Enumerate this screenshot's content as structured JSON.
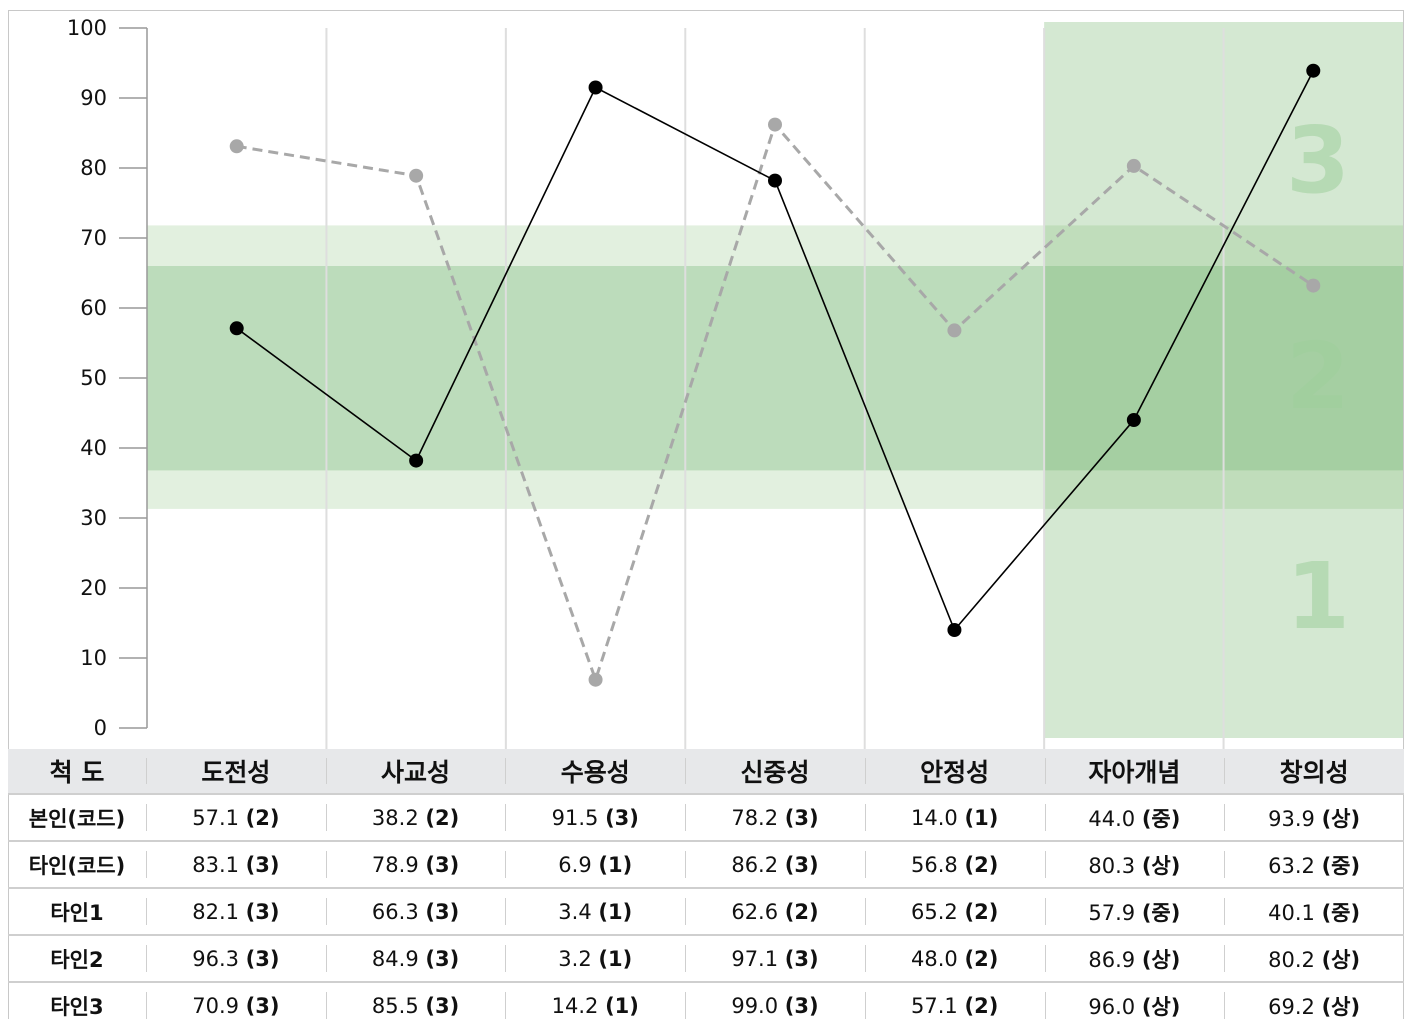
{
  "chart_data": {
    "type": "line",
    "title": "",
    "xlabel": "",
    "ylabel": "",
    "ylim": [
      0,
      100
    ],
    "yticks": [
      0,
      10,
      20,
      30,
      40,
      50,
      60,
      70,
      80,
      90,
      100
    ],
    "categories": [
      "도전성",
      "사교성",
      "수용성",
      "신중성",
      "안정성",
      "자아개념",
      "창의성"
    ],
    "bands": {
      "outer": [
        31.3,
        71.8
      ],
      "inner": [
        36.8,
        66.0
      ],
      "highlight_categories": [
        "자아개념",
        "창의성"
      ],
      "level_labels": [
        "1",
        "2",
        "3"
      ]
    },
    "series": [
      {
        "values": [
          57.1,
          38.2,
          91.5,
          78.2,
          14.0,
          44.0,
          93.9
        ],
        "color": "#000000",
        "style": "solid"
      },
      {
        "values": [
          83.1,
          78.9,
          6.9,
          86.2,
          56.8,
          80.3,
          63.2
        ],
        "color": "#a8a8a8",
        "style": "dashed"
      }
    ],
    "grid": "vertical"
  },
  "table": {
    "header_label": "척 도",
    "columns": [
      "도전성",
      "사교성",
      "수용성",
      "신중성",
      "안정성",
      "자아개념",
      "창의성"
    ],
    "rows": [
      {
        "label": "본인(코드)",
        "cells": [
          {
            "v": "57.1",
            "l": "(2)"
          },
          {
            "v": "38.2",
            "l": "(2)"
          },
          {
            "v": "91.5",
            "l": "(3)"
          },
          {
            "v": "78.2",
            "l": "(3)"
          },
          {
            "v": "14.0",
            "l": "(1)"
          },
          {
            "v": "44.0",
            "l": "(중)"
          },
          {
            "v": "93.9",
            "l": "(상)"
          }
        ]
      },
      {
        "label": "타인(코드)",
        "cells": [
          {
            "v": "83.1",
            "l": "(3)"
          },
          {
            "v": "78.9",
            "l": "(3)"
          },
          {
            "v": "6.9",
            "l": "(1)"
          },
          {
            "v": "86.2",
            "l": "(3)"
          },
          {
            "v": "56.8",
            "l": "(2)"
          },
          {
            "v": "80.3",
            "l": "(상)"
          },
          {
            "v": "63.2",
            "l": "(중)"
          }
        ]
      },
      {
        "label": "타인1",
        "cells": [
          {
            "v": "82.1",
            "l": "(3)"
          },
          {
            "v": "66.3",
            "l": "(3)"
          },
          {
            "v": "3.4",
            "l": "(1)"
          },
          {
            "v": "62.6",
            "l": "(2)"
          },
          {
            "v": "65.2",
            "l": "(2)"
          },
          {
            "v": "57.9",
            "l": "(중)"
          },
          {
            "v": "40.1",
            "l": "(중)"
          }
        ]
      },
      {
        "label": "타인2",
        "cells": [
          {
            "v": "96.3",
            "l": "(3)"
          },
          {
            "v": "84.9",
            "l": "(3)"
          },
          {
            "v": "3.2",
            "l": "(1)"
          },
          {
            "v": "97.1",
            "l": "(3)"
          },
          {
            "v": "48.0",
            "l": "(2)"
          },
          {
            "v": "86.9",
            "l": "(상)"
          },
          {
            "v": "80.2",
            "l": "(상)"
          }
        ]
      },
      {
        "label": "타인3",
        "cells": [
          {
            "v": "70.9",
            "l": "(3)"
          },
          {
            "v": "85.5",
            "l": "(3)"
          },
          {
            "v": "14.2",
            "l": "(1)"
          },
          {
            "v": "99.0",
            "l": "(3)"
          },
          {
            "v": "57.1",
            "l": "(2)"
          },
          {
            "v": "96.0",
            "l": "(상)"
          },
          {
            "v": "69.2",
            "l": "(상)"
          }
        ]
      }
    ]
  }
}
